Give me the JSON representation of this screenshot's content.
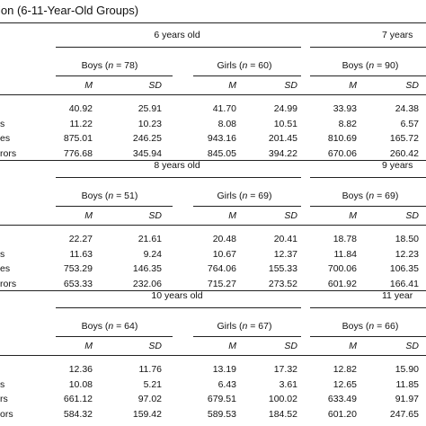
{
  "title": "ion (6-11-Year-Old Groups)",
  "blocks": [
    {
      "age": "6 years old",
      "age2": "7 years",
      "g1_label": "Boys",
      "g1_n": "(n = 78)",
      "g2_label": "Girls",
      "g2_n": "(n = 60)",
      "g3_label": "Boys",
      "g3_n": "(n = 90)",
      "m": "M",
      "sd": "SD",
      "rows": [
        {
          "label": "",
          "v": [
            "40.92",
            "25.91",
            "41.70",
            "24.99",
            "33.93",
            "24.38"
          ]
        },
        {
          "label": "s",
          "v": [
            "11.22",
            "10.23",
            "8.08",
            "10.51",
            "8.82",
            "6.57"
          ]
        },
        {
          "label": "es",
          "v": [
            "875.01",
            "246.25",
            "943.16",
            "201.45",
            "810.69",
            "165.72"
          ]
        },
        {
          "label": "rors",
          "v": [
            "776.68",
            "345.94",
            "845.05",
            "394.22",
            "670.06",
            "260.42"
          ]
        }
      ]
    },
    {
      "age": "8 years old",
      "age2": "9 years",
      "g1_label": "Boys",
      "g1_n": "(n = 51)",
      "g2_label": "Girls",
      "g2_n": "(n = 69)",
      "g3_label": "Boys",
      "g3_n": "(n = 69)",
      "m": "M",
      "sd": "SD",
      "rows": [
        {
          "label": "",
          "v": [
            "22.27",
            "21.61",
            "20.48",
            "20.41",
            "18.78",
            "18.50"
          ]
        },
        {
          "label": "s",
          "v": [
            "11.63",
            "9.24",
            "10.67",
            "12.37",
            "11.84",
            "12.23"
          ]
        },
        {
          "label": "es",
          "v": [
            "753.29",
            "146.35",
            "764.06",
            "155.33",
            "700.06",
            "106.35"
          ]
        },
        {
          "label": "rors",
          "v": [
            "653.33",
            "232.06",
            "715.27",
            "273.52",
            "601.92",
            "166.41"
          ]
        }
      ]
    },
    {
      "age": "10 years old",
      "age2": "11 year",
      "g1_label": "Boys",
      "g1_n": "(n = 64)",
      "g2_label": "Girls",
      "g2_n": "(n = 67)",
      "g3_label": "Boys",
      "g3_n": "(n = 66)",
      "m": "M",
      "sd": "SD",
      "rows": [
        {
          "label": "",
          "v": [
            "12.36",
            "11.76",
            "13.19",
            "17.32",
            "12.82",
            "15.90"
          ]
        },
        {
          "label": "s",
          "v": [
            "10.08",
            "5.21",
            "6.43",
            "3.61",
            "12.65",
            "11.85"
          ]
        },
        {
          "label": "rs",
          "v": [
            "661.12",
            "97.02",
            "679.51",
            "100.02",
            "633.49",
            "91.97"
          ]
        },
        {
          "label": "ors",
          "v": [
            "584.32",
            "159.42",
            "589.53",
            "184.52",
            "601.20",
            "247.65"
          ]
        }
      ]
    }
  ]
}
